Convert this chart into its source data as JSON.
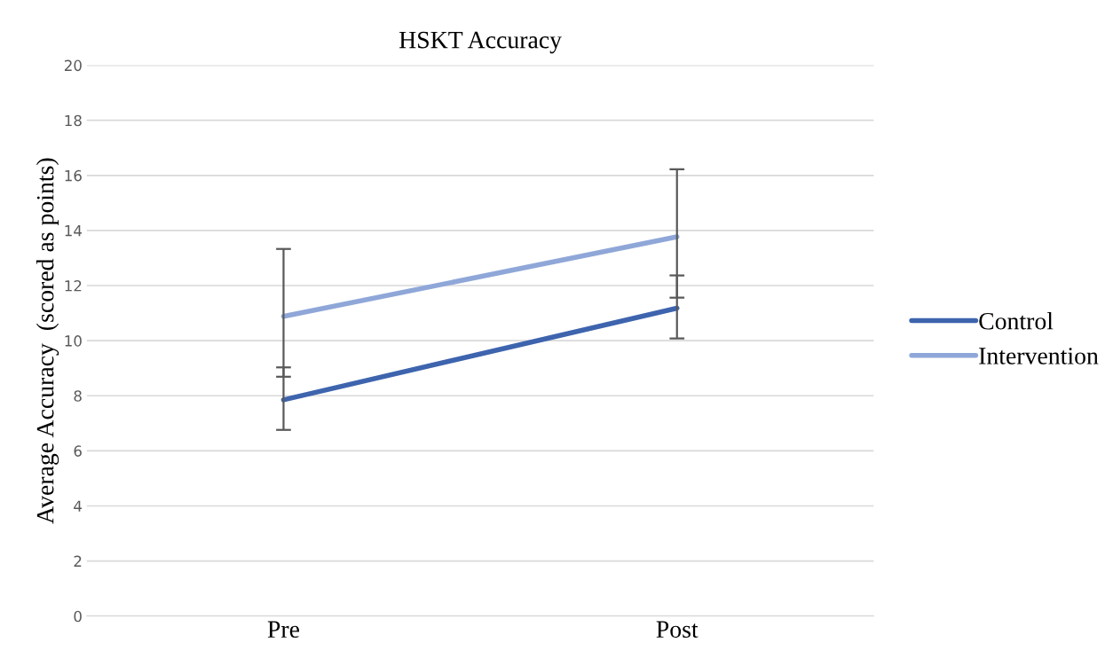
{
  "chart_data": {
    "type": "line",
    "title": "HSKT Accuracy",
    "ylabel": "Average Accuracy  (scored as points)",
    "categories": [
      "Pre",
      "Post"
    ],
    "series": [
      {
        "name": "Control",
        "color": "#3e64ae",
        "values": [
          7.85,
          11.18
        ],
        "errors": [
          [
            6.76,
            9.03
          ],
          [
            10.08,
            12.37
          ]
        ]
      },
      {
        "name": "Intervention",
        "color": "#8fa7d8",
        "values": [
          10.88,
          13.77
        ],
        "errors": [
          [
            8.69,
            13.33
          ],
          [
            11.56,
            16.22
          ]
        ]
      }
    ],
    "ylim": [
      0,
      20
    ],
    "yticks": [
      0,
      2,
      4,
      6,
      8,
      10,
      12,
      14,
      16,
      18,
      20
    ],
    "grid": "y",
    "legend": "right",
    "marker": "none",
    "line_style": "solid"
  }
}
